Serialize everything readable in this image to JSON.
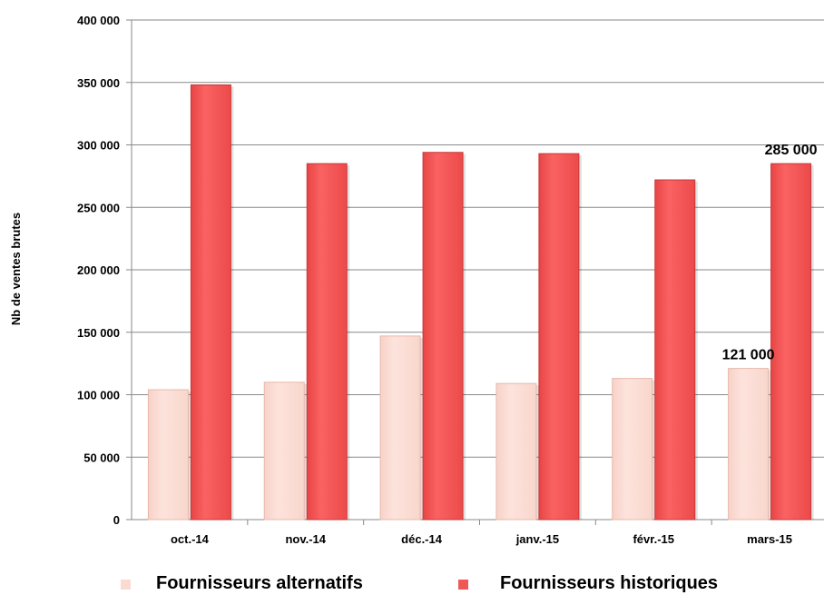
{
  "chart_data": {
    "type": "bar",
    "categories": [
      "oct.-14",
      "nov.-14",
      "déc.-14",
      "janv.-15",
      "févr.-15",
      "mars-15"
    ],
    "series": [
      {
        "name": "Fournisseurs alternatifs",
        "color": "#fadbd2",
        "values": [
          104000,
          110000,
          147000,
          109000,
          113000,
          121000
        ]
      },
      {
        "name": "Fournisseurs historiques",
        "color": "#f25757",
        "values": [
          348000,
          285000,
          294000,
          293000,
          272000,
          285000
        ]
      }
    ],
    "ylabel": "Nb de ventes brutes",
    "ylim": [
      0,
      400000
    ],
    "yticks": [
      0,
      50000,
      100000,
      150000,
      200000,
      250000,
      300000,
      350000,
      400000
    ],
    "ytick_labels": [
      "0",
      "50 000",
      "100 000",
      "150 000",
      "200 000",
      "250 000",
      "300 000",
      "350 000",
      "400 000"
    ],
    "grid": true,
    "legend_position": "bottom",
    "data_labels": [
      {
        "series": 0,
        "category": 5,
        "text": "121 000"
      },
      {
        "series": 1,
        "category": 5,
        "text": "285 000"
      }
    ]
  }
}
